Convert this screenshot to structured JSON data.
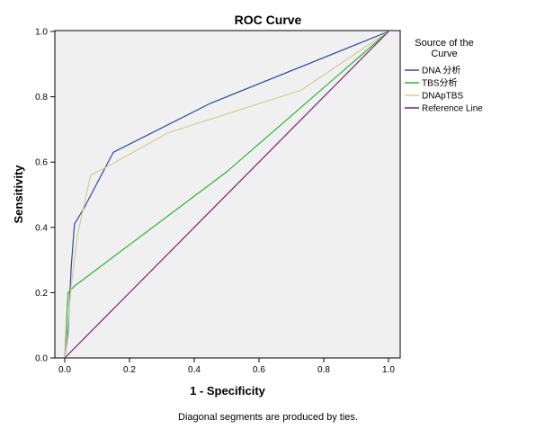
{
  "chart_data": {
    "type": "line",
    "title": "ROC Curve",
    "xlabel": "1 - Specificity",
    "ylabel": "Sensitivity",
    "xlim": [
      0,
      1
    ],
    "ylim": [
      0,
      1
    ],
    "x_ticks": [
      "0.0",
      "0.2",
      "0.4",
      "0.6",
      "0.8",
      "1.0"
    ],
    "y_ticks": [
      "0.0",
      "0.2",
      "0.4",
      "0.6",
      "0.8",
      "1.0"
    ],
    "grid": false,
    "legend": {
      "title_line1": "Source of the",
      "title_line2": "Curve",
      "position": "right"
    },
    "footnote": "Diagonal segments are produced by ties.",
    "series": [
      {
        "name": "DNA 分析",
        "color": "#2d4a9e",
        "points": [
          [
            0.0,
            0.0
          ],
          [
            0.01,
            0.08
          ],
          [
            0.02,
            0.28
          ],
          [
            0.03,
            0.41
          ],
          [
            0.06,
            0.46
          ],
          [
            0.15,
            0.63
          ],
          [
            0.45,
            0.78
          ],
          [
            1.0,
            1.0
          ]
        ]
      },
      {
        "name": "TBS分析",
        "color": "#2fb33a",
        "points": [
          [
            0.0,
            0.0
          ],
          [
            0.01,
            0.2
          ],
          [
            0.03,
            0.22
          ],
          [
            0.5,
            0.57
          ],
          [
            1.0,
            1.0
          ]
        ]
      },
      {
        "name": "DNApTBS",
        "color": "#d6cc96",
        "points": [
          [
            0.0,
            0.0
          ],
          [
            0.02,
            0.22
          ],
          [
            0.04,
            0.38
          ],
          [
            0.08,
            0.56
          ],
          [
            0.12,
            0.58
          ],
          [
            0.32,
            0.69
          ],
          [
            0.73,
            0.82
          ],
          [
            1.0,
            1.0
          ]
        ]
      },
      {
        "name": "Reference Line",
        "color": "#7b1f7b",
        "points": [
          [
            0.0,
            0.0
          ],
          [
            1.0,
            1.0
          ]
        ]
      }
    ]
  }
}
